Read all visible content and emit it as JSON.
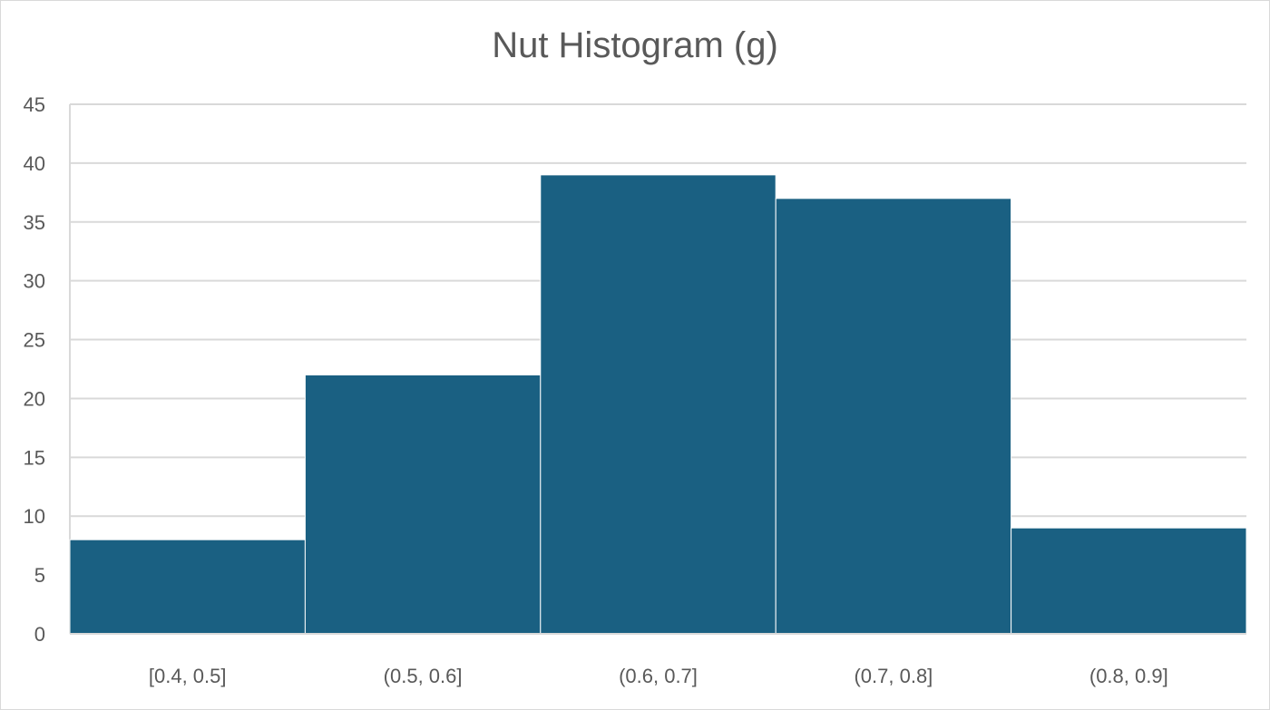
{
  "chart_data": {
    "type": "bar",
    "title": "Nut Histogram (g)",
    "categories": [
      "[0.4, 0.5]",
      "(0.5, 0.6]",
      "(0.6, 0.7]",
      "(0.7, 0.8]",
      "(0.8, 0.9]"
    ],
    "values": [
      8,
      22,
      39,
      37,
      9
    ],
    "xlabel": "",
    "ylabel": "",
    "ylim": [
      0,
      45
    ],
    "yticks": [
      0,
      5,
      10,
      15,
      20,
      25,
      30,
      35,
      40,
      45
    ],
    "grid": true,
    "bar_color": "#1a6082",
    "gap": 0
  }
}
